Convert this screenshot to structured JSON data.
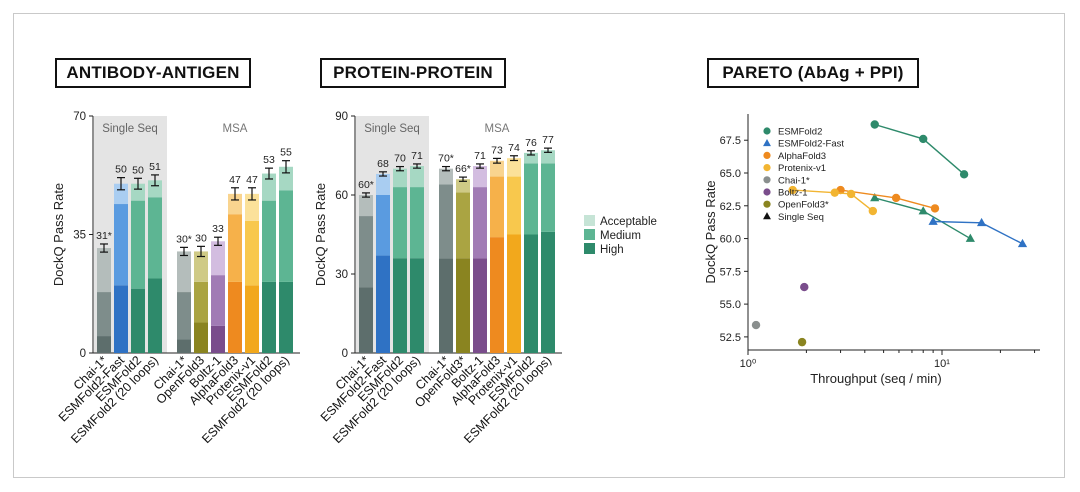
{
  "panels": {
    "antibody_antigen_title": "ANTIBODY-ANTIGEN",
    "protein_protein_title": "PROTEIN-PROTEIN",
    "pareto_title": "PARETO (AbAg + PPI)"
  },
  "legend_tiers": [
    "Acceptable",
    "Medium",
    "High"
  ],
  "colors": {
    "chai": [
      "#5d6e6c",
      "#7e8d8b",
      "#b4bdbb"
    ],
    "esmfold_fast": [
      "#2f72c4",
      "#5a9be0",
      "#a9cdf1"
    ],
    "esmfold": [
      "#2e8a6b",
      "#5db593",
      "#a6d8c3"
    ],
    "openfold": [
      "#8a8420",
      "#aaa442",
      "#cfca86"
    ],
    "boltz": [
      "#7a4d8c",
      "#a17bb5",
      "#d3bde0"
    ],
    "alphafold": [
      "#ee8a1f",
      "#f6b14a",
      "#f9d48f"
    ],
    "protenix": [
      "#f2a81c",
      "#f8c84d",
      "#fbe19a"
    ],
    "tier_legend": [
      "#2e8a6b",
      "#5db593",
      "#c6e4d6"
    ],
    "single_seq_bg": "#e4e4e4"
  },
  "chart_data": [
    {
      "type": "bar",
      "stacked": true,
      "ylabel": "DockQ Pass Rate",
      "ylim": [
        0,
        70
      ],
      "yticks": [
        0,
        35,
        70
      ],
      "group_labels": [
        "Single Seq",
        "MSA"
      ],
      "categories": [
        "Chai-1*",
        "ESMFold2-Fast",
        "ESMFold2",
        "ESMFold2 (20 loops)",
        "Chai-1*",
        "OpenFold3",
        "Boltz-1",
        "AlphaFold3",
        "Protenix-v1",
        "ESMFold2",
        "ESMFold2 (20 loops)"
      ],
      "palettes": [
        "chai",
        "esmfold_fast",
        "esmfold",
        "esmfold",
        "chai",
        "openfold",
        "boltz",
        "alphafold",
        "protenix",
        "esmfold",
        "esmfold"
      ],
      "series": [
        {
          "name": "High",
          "values": [
            5,
            20,
            19,
            22,
            4,
            9,
            8,
            21,
            20,
            21,
            21
          ]
        },
        {
          "name": "Medium",
          "values": [
            13,
            24,
            26,
            24,
            14,
            12,
            15,
            20,
            19,
            24,
            27
          ]
        },
        {
          "name": "Acceptable",
          "values": [
            13,
            6,
            5,
            5,
            12,
            9,
            10,
            6,
            8,
            8,
            7
          ]
        }
      ],
      "totals": [
        31,
        50,
        50,
        51,
        30,
        30,
        33,
        47,
        47,
        53,
        55
      ],
      "total_labels": [
        "31*",
        "50",
        "50",
        "51",
        "30*",
        "30",
        "33",
        "47",
        "47",
        "53",
        "55"
      ],
      "errors": [
        1.2,
        1.8,
        1.6,
        1.6,
        1.2,
        1.5,
        1.2,
        1.8,
        1.8,
        1.6,
        1.8
      ]
    },
    {
      "type": "bar",
      "stacked": true,
      "ylabel": "DockQ Pass Rate",
      "ylim": [
        0,
        90
      ],
      "yticks": [
        0,
        30,
        60,
        90
      ],
      "group_labels": [
        "Single Seq",
        "MSA"
      ],
      "categories": [
        "Chai-1*",
        "ESMFold2-Fast",
        "ESMFold2",
        "ESMFold2 (20 loops)",
        "Chai-1*",
        "OpenFold3*",
        "Boltz-1",
        "AlphaFold3",
        "Protenix-v1",
        "ESMFold2",
        "ESMFold2 (20 loops)"
      ],
      "palettes": [
        "chai",
        "esmfold_fast",
        "esmfold",
        "esmfold",
        "chai",
        "openfold",
        "boltz",
        "alphafold",
        "protenix",
        "esmfold",
        "esmfold"
      ],
      "series": [
        {
          "name": "High",
          "values": [
            25,
            37,
            36,
            36,
            36,
            36,
            36,
            44,
            45,
            45,
            46
          ]
        },
        {
          "name": "Medium",
          "values": [
            27,
            23,
            27,
            27,
            28,
            25,
            27,
            23,
            22,
            27,
            26
          ]
        },
        {
          "name": "Acceptable",
          "values": [
            8,
            8,
            7,
            8,
            6,
            5,
            8,
            6,
            7,
            4,
            5
          ]
        }
      ],
      "totals": [
        60,
        68,
        70,
        71,
        70,
        66,
        71,
        73,
        74,
        76,
        77
      ],
      "total_labels": [
        "60*",
        "68",
        "70",
        "71",
        "70*",
        "66*",
        "71",
        "73",
        "74",
        "76",
        "77"
      ],
      "errors": [
        0.8,
        0.8,
        0.8,
        0.8,
        0.8,
        0.8,
        0.8,
        0.9,
        0.9,
        0.8,
        0.8
      ]
    },
    {
      "type": "scatter",
      "xlabel": "Throughput (seq / min)",
      "ylabel": "DockQ Pass Rate",
      "xscale": "log",
      "xlim": [
        1,
        32
      ],
      "ylim": [
        51.5,
        69.5
      ],
      "xtick_labels": [
        "10⁰",
        "10¹"
      ],
      "yticks": [
        52.5,
        55.0,
        57.5,
        60.0,
        62.5,
        65.0,
        67.5
      ],
      "ytick_labels": [
        "52.5",
        "55.0",
        "57.5",
        "60.0",
        "62.5",
        "65.0",
        "67.5"
      ],
      "series": [
        {
          "name": "ESMFold2",
          "color": "#2e8a6b",
          "marker": "circle",
          "connected": true,
          "x": [
            4.5,
            8.0,
            13.0
          ],
          "y": [
            68.7,
            67.6,
            64.9
          ]
        },
        {
          "name": "ESMFold2",
          "color": "#2e8a6b",
          "marker": "triangle",
          "connected": true,
          "x": [
            4.5,
            8.0,
            14.0
          ],
          "y": [
            63.1,
            62.1,
            60.0
          ]
        },
        {
          "name": "ESMFold2-Fast",
          "color": "#2f72c4",
          "marker": "triangle",
          "connected": true,
          "x": [
            9.0,
            16.0,
            26.0
          ],
          "y": [
            61.3,
            61.2,
            59.6
          ]
        },
        {
          "name": "AlphaFold3",
          "color": "#ee8a1f",
          "marker": "circle",
          "connected": true,
          "x": [
            3.0,
            5.8,
            9.2
          ],
          "y": [
            63.7,
            63.1,
            62.3
          ]
        },
        {
          "name": "Protenix-v1",
          "color": "#f2b532",
          "marker": "circle",
          "connected": true,
          "x": [
            1.7,
            2.8,
            3.4,
            4.4
          ],
          "y": [
            63.7,
            63.5,
            63.4,
            62.1
          ]
        },
        {
          "name": "Chai-1*",
          "color": "#8a8f8e",
          "marker": "circle",
          "connected": false,
          "x": [
            1.1
          ],
          "y": [
            53.4
          ]
        },
        {
          "name": "Boltz-1",
          "color": "#7a4d8c",
          "marker": "circle",
          "connected": false,
          "x": [
            1.95
          ],
          "y": [
            56.3
          ]
        },
        {
          "name": "OpenFold3*",
          "color": "#8a8420",
          "marker": "circle",
          "connected": false,
          "x": [
            1.9
          ],
          "y": [
            52.1
          ]
        }
      ],
      "legend": [
        {
          "label": "ESMFold2",
          "color": "#2e8a6b",
          "marker": "circle"
        },
        {
          "label": "ESMFold2-Fast",
          "color": "#2f72c4",
          "marker": "triangle"
        },
        {
          "label": "AlphaFold3",
          "color": "#ee8a1f",
          "marker": "circle"
        },
        {
          "label": "Protenix-v1",
          "color": "#f2b532",
          "marker": "circle"
        },
        {
          "label": "Chai-1*",
          "color": "#8a8f8e",
          "marker": "circle"
        },
        {
          "label": "Boltz-1",
          "color": "#7a4d8c",
          "marker": "circle"
        },
        {
          "label": "OpenFold3*",
          "color": "#8a8420",
          "marker": "circle"
        },
        {
          "label": "Single Seq",
          "color": "#111111",
          "marker": "triangle"
        }
      ]
    }
  ]
}
